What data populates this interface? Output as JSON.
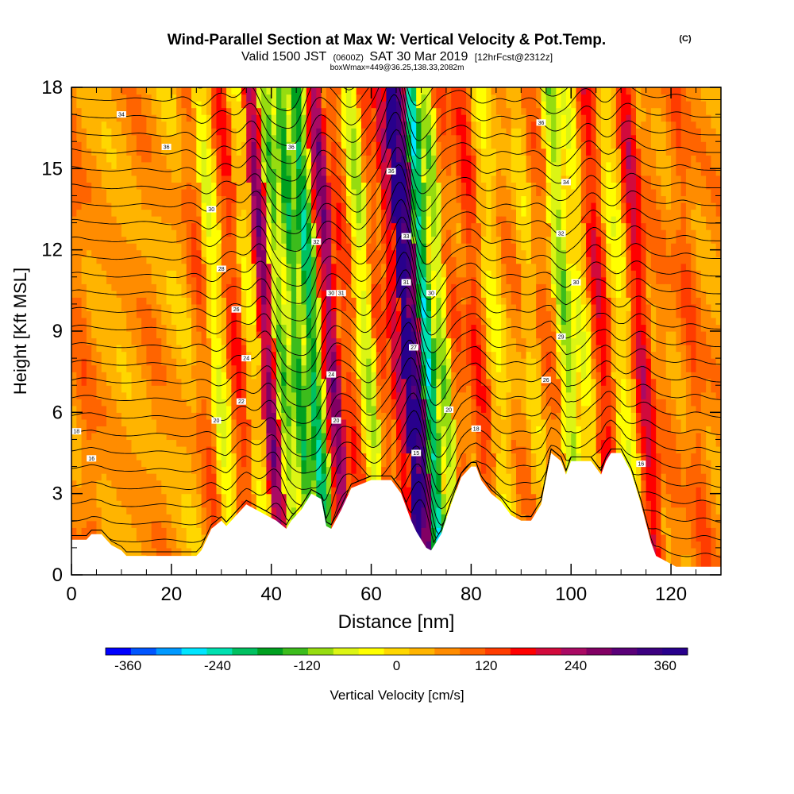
{
  "header": {
    "title": "Wind-Parallel Section at Max W: Vertical Velocity & Pot.Temp.",
    "copyright": "(C)",
    "valid_prefix": "Valid 1500 JST",
    "valid_utc": "(0600Z)",
    "valid_date": "SAT 30 Mar 2019",
    "forecast": "[12hrFcst@2312z]",
    "box_info": "boxWmax=449@36.25,138.33,2082m"
  },
  "chart_data": {
    "type": "heatmap",
    "title": "Wind-Parallel Section at Max W: Vertical Velocity & Pot.Temp.",
    "xlabel": "Distance [nm]",
    "ylabel": "Height [Kft MSL]",
    "xlim": [
      0,
      130
    ],
    "ylim": [
      0,
      18
    ],
    "x_ticks": [
      0,
      20,
      40,
      60,
      80,
      100,
      120
    ],
    "x_tick_labels": [
      "0",
      "20",
      "40",
      "60",
      "80",
      "100",
      "120"
    ],
    "y_ticks": [
      0,
      3,
      6,
      9,
      12,
      15,
      18
    ],
    "y_tick_labels": [
      "0",
      "3",
      "6",
      "9",
      "12",
      "15",
      "18"
    ],
    "grid": false,
    "colorbar": {
      "label": "Vertical Velocity [cm/s]",
      "min": -390,
      "max": 390,
      "step": 30,
      "tick_values": [
        -360,
        -240,
        -120,
        0,
        120,
        240,
        360
      ],
      "tick_labels": [
        "-360",
        "-240",
        "-120",
        "0",
        "120",
        "240",
        "360"
      ],
      "colors": [
        "#0000ff",
        "#0055ff",
        "#0099ff",
        "#00e5ff",
        "#00e0b0",
        "#00c060",
        "#00a020",
        "#3cbc1c",
        "#96dc10",
        "#dcf514",
        "#ffff00",
        "#ffd700",
        "#ffb400",
        "#ff8c00",
        "#ff6400",
        "#ff3c00",
        "#ff0000",
        "#d20a3c",
        "#aa0a64",
        "#820064",
        "#5a0078",
        "#3c0080",
        "#28008c"
      ]
    },
    "wmax_cm_s": 449,
    "wmax_location": "36.25,138.33",
    "wmax_height_m": 2082,
    "vertical_velocity_bands": [
      {
        "x_center": 4,
        "w": 40
      },
      {
        "x_center": 12,
        "w": -10
      },
      {
        "x_center": 18,
        "w": 20
      },
      {
        "x_center": 24,
        "w": -20
      },
      {
        "x_center": 28,
        "w": 50
      },
      {
        "x_center": 31,
        "w": -90
      },
      {
        "x_center": 35,
        "w": 90
      },
      {
        "x_center": 38,
        "w": -50
      },
      {
        "x_center": 41,
        "w": 200
      },
      {
        "x_center": 44,
        "w": -160
      },
      {
        "x_center": 47,
        "w": -200
      },
      {
        "x_center": 50,
        "w": -240
      },
      {
        "x_center": 54,
        "w": 200
      },
      {
        "x_center": 57,
        "w": 80
      },
      {
        "x_center": 61,
        "w": -120
      },
      {
        "x_center": 64,
        "w": 60
      },
      {
        "x_center": 67,
        "w": 140
      },
      {
        "x_center": 69,
        "w": 380
      },
      {
        "x_center": 70.5,
        "w": 270
      },
      {
        "x_center": 73,
        "w": -270
      },
      {
        "x_center": 76,
        "w": -140
      },
      {
        "x_center": 79,
        "w": 50
      },
      {
        "x_center": 83,
        "w": 90
      },
      {
        "x_center": 87,
        "w": -60
      },
      {
        "x_center": 91,
        "w": 20
      },
      {
        "x_center": 94,
        "w": -40
      },
      {
        "x_center": 97,
        "w": 40
      },
      {
        "x_center": 101,
        "w": -150
      },
      {
        "x_center": 104,
        "w": -80
      },
      {
        "x_center": 108,
        "w": 120
      },
      {
        "x_center": 112,
        "w": -70
      },
      {
        "x_center": 116,
        "w": 140
      },
      {
        "x_center": 120,
        "w": 30
      },
      {
        "x_center": 126,
        "w": 60
      }
    ],
    "terrain_kft": [
      [
        0,
        1.3
      ],
      [
        3,
        1.3
      ],
      [
        4,
        1.5
      ],
      [
        6,
        1.5
      ],
      [
        7,
        1.3
      ],
      [
        8,
        1.1
      ],
      [
        10,
        0.9
      ],
      [
        11,
        0.7
      ],
      [
        20,
        0.7
      ],
      [
        25,
        0.7
      ],
      [
        26,
        0.9
      ],
      [
        27,
        1.3
      ],
      [
        28,
        1.7
      ],
      [
        30,
        2.0
      ],
      [
        31,
        1.8
      ],
      [
        33,
        2.2
      ],
      [
        35,
        2.6
      ],
      [
        38,
        2.3
      ],
      [
        41,
        2.0
      ],
      [
        43,
        1.7
      ],
      [
        44,
        2.0
      ],
      [
        46,
        2.4
      ],
      [
        48,
        3.0
      ],
      [
        50,
        2.8
      ],
      [
        51,
        1.8
      ],
      [
        52,
        1.7
      ],
      [
        54,
        2.4
      ],
      [
        56,
        3.2
      ],
      [
        60,
        3.5
      ],
      [
        64,
        3.5
      ],
      [
        66,
        3.0
      ],
      [
        68,
        2.0
      ],
      [
        69,
        1.6
      ],
      [
        70,
        1.3
      ],
      [
        71,
        1.0
      ],
      [
        72,
        0.9
      ],
      [
        74,
        1.5
      ],
      [
        76,
        2.6
      ],
      [
        78,
        3.6
      ],
      [
        80,
        4.0
      ],
      [
        81,
        4.0
      ],
      [
        82,
        3.5
      ],
      [
        84,
        3.0
      ],
      [
        86,
        2.7
      ],
      [
        88,
        2.2
      ],
      [
        90,
        2.0
      ],
      [
        92,
        2.0
      ],
      [
        94,
        2.6
      ],
      [
        96,
        4.5
      ],
      [
        98,
        4.2
      ],
      [
        99,
        3.7
      ],
      [
        100,
        4.2
      ],
      [
        104,
        4.2
      ],
      [
        106,
        3.7
      ],
      [
        107,
        4.2
      ],
      [
        108,
        4.5
      ],
      [
        110,
        4.5
      ],
      [
        112,
        3.8
      ],
      [
        113,
        3.2
      ],
      [
        114,
        2.6
      ],
      [
        115,
        1.9
      ],
      [
        116,
        1.2
      ],
      [
        117,
        0.7
      ],
      [
        119,
        0.5
      ],
      [
        121,
        0.3
      ],
      [
        130,
        0.3
      ]
    ],
    "pot_temp_contour_count": 28,
    "contour_labels": [
      {
        "x": 10,
        "y": 17.0,
        "text": "34"
      },
      {
        "x": 19,
        "y": 15.8,
        "text": "36"
      },
      {
        "x": 28,
        "y": 13.5,
        "text": "30"
      },
      {
        "x": 30,
        "y": 11.3,
        "text": "28"
      },
      {
        "x": 33,
        "y": 9.8,
        "text": "26"
      },
      {
        "x": 35,
        "y": 8.0,
        "text": "24"
      },
      {
        "x": 34,
        "y": 6.4,
        "text": "22"
      },
      {
        "x": 29,
        "y": 5.7,
        "text": "20"
      },
      {
        "x": 1,
        "y": 5.3,
        "text": "18"
      },
      {
        "x": 4,
        "y": 4.3,
        "text": "16"
      },
      {
        "x": 44,
        "y": 15.8,
        "text": "36"
      },
      {
        "x": 49,
        "y": 12.3,
        "text": "32"
      },
      {
        "x": 52,
        "y": 10.4,
        "text": "30"
      },
      {
        "x": 54,
        "y": 10.4,
        "text": "31"
      },
      {
        "x": 52,
        "y": 7.4,
        "text": "24"
      },
      {
        "x": 53,
        "y": 5.7,
        "text": "20"
      },
      {
        "x": 64,
        "y": 14.9,
        "text": "36"
      },
      {
        "x": 67,
        "y": 12.5,
        "text": "33"
      },
      {
        "x": 67,
        "y": 10.8,
        "text": "31"
      },
      {
        "x": 72,
        "y": 10.4,
        "text": "30"
      },
      {
        "x": 68.5,
        "y": 8.4,
        "text": "27"
      },
      {
        "x": 69,
        "y": 4.5,
        "text": "15"
      },
      {
        "x": 75.5,
        "y": 6.1,
        "text": "20"
      },
      {
        "x": 81,
        "y": 5.4,
        "text": "18"
      },
      {
        "x": 94,
        "y": 16.7,
        "text": "36"
      },
      {
        "x": 99,
        "y": 14.5,
        "text": "34"
      },
      {
        "x": 98,
        "y": 12.6,
        "text": "32"
      },
      {
        "x": 101,
        "y": 10.8,
        "text": "30"
      },
      {
        "x": 98,
        "y": 8.8,
        "text": "29"
      },
      {
        "x": 95,
        "y": 7.2,
        "text": "26"
      },
      {
        "x": 114,
        "y": 4.1,
        "text": "16"
      }
    ]
  }
}
